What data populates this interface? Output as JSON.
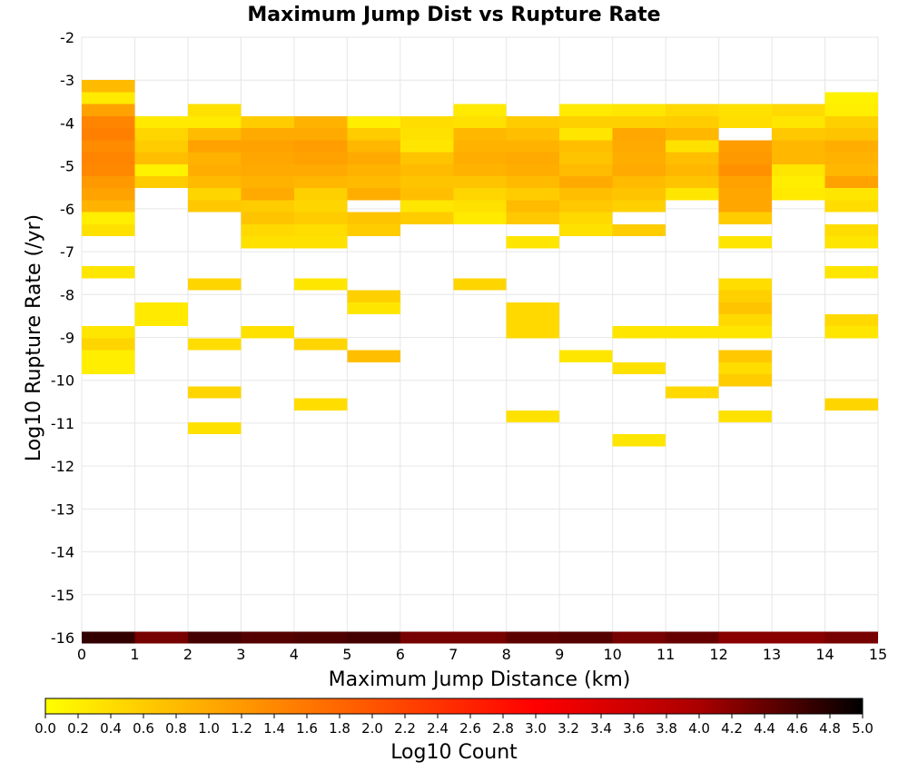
{
  "chart_data": {
    "type": "heatmap",
    "title": "Maximum Jump Dist vs Rupture Rate",
    "xlabel": "Maximum Jump Distance (km)",
    "ylabel": "Log10 Rupture Rate (/yr)",
    "xlim": [
      0,
      15
    ],
    "ylim": [
      -16,
      -2
    ],
    "x_ticks": [
      0,
      1,
      2,
      3,
      4,
      5,
      6,
      7,
      8,
      9,
      10,
      11,
      12,
      13,
      14,
      15
    ],
    "y_ticks": [
      -16,
      -15,
      -14,
      -13,
      -12,
      -11,
      -10,
      -9,
      -8,
      -7,
      -6,
      -5,
      -4,
      -3,
      -2
    ],
    "x_bin_width": 1,
    "y_bin_height": 0.28,
    "grid": true,
    "colorbar": {
      "label": "Log10 Count",
      "min": 0,
      "max": 5,
      "ticks": [
        "0.0",
        "0.2",
        "0.4",
        "0.6",
        "0.8",
        "1.0",
        "1.2",
        "1.4",
        "1.6",
        "1.8",
        "2.0",
        "2.2",
        "2.4",
        "2.6",
        "2.8",
        "3.0",
        "3.2",
        "3.4",
        "3.6",
        "3.8",
        "4.0",
        "4.2",
        "4.4",
        "4.6",
        "4.8",
        "5.0"
      ],
      "colors": [
        "#ffff00",
        "#ffaa00",
        "#ff5500",
        "#ff0000",
        "#aa0000",
        "#000000"
      ]
    },
    "cells": [
      [
        0,
        -3.14,
        0.8
      ],
      [
        0,
        -3.42,
        0.25
      ],
      [
        0,
        -3.7,
        1.1
      ],
      [
        0,
        -3.98,
        1.45
      ],
      [
        0,
        -4.26,
        1.5
      ],
      [
        0,
        -4.54,
        1.35
      ],
      [
        0,
        -4.82,
        1.45
      ],
      [
        0,
        -5.1,
        1.4
      ],
      [
        0,
        -5.38,
        1.2
      ],
      [
        0,
        -5.66,
        1.1
      ],
      [
        0,
        -5.94,
        0.9
      ],
      [
        0,
        -6.22,
        0.2
      ],
      [
        0,
        -6.5,
        0.35
      ],
      [
        0,
        -7.48,
        0.3
      ],
      [
        0,
        -8.88,
        0.3
      ],
      [
        0,
        -9.16,
        0.5
      ],
      [
        0,
        -9.44,
        0.2
      ],
      [
        0,
        -9.72,
        0.2
      ],
      [
        0,
        -16.0,
        4.7
      ],
      [
        1,
        -3.98,
        0.25
      ],
      [
        1,
        -4.26,
        0.5
      ],
      [
        1,
        -4.54,
        0.6
      ],
      [
        1,
        -4.82,
        0.75
      ],
      [
        1,
        -5.1,
        0.15
      ],
      [
        1,
        -5.38,
        0.6
      ],
      [
        1,
        -8.32,
        0.25
      ],
      [
        1,
        -8.6,
        0.25
      ],
      [
        1,
        -16.0,
        4.3
      ],
      [
        2,
        -3.7,
        0.35
      ],
      [
        2,
        -3.98,
        0.25
      ],
      [
        2,
        -4.26,
        0.8
      ],
      [
        2,
        -4.54,
        1.1
      ],
      [
        2,
        -4.82,
        0.9
      ],
      [
        2,
        -5.1,
        0.95
      ],
      [
        2,
        -5.38,
        0.8
      ],
      [
        2,
        -5.66,
        0.5
      ],
      [
        2,
        -5.94,
        0.65
      ],
      [
        2,
        -7.76,
        0.5
      ],
      [
        2,
        -9.16,
        0.4
      ],
      [
        2,
        -10.28,
        0.5
      ],
      [
        2,
        -11.12,
        0.35
      ],
      [
        2,
        -16.0,
        4.6
      ],
      [
        3,
        -3.98,
        0.6
      ],
      [
        3,
        -4.26,
        1.0
      ],
      [
        3,
        -4.54,
        1.1
      ],
      [
        3,
        -4.82,
        1.05
      ],
      [
        3,
        -5.1,
        1.0
      ],
      [
        3,
        -5.38,
        0.9
      ],
      [
        3,
        -5.66,
        1.0
      ],
      [
        3,
        -5.94,
        0.6
      ],
      [
        3,
        -6.22,
        0.7
      ],
      [
        3,
        -6.5,
        0.45
      ],
      [
        3,
        -6.78,
        0.35
      ],
      [
        3,
        -8.88,
        0.35
      ],
      [
        3,
        -16.0,
        4.5
      ],
      [
        4,
        -3.98,
        0.9
      ],
      [
        4,
        -4.26,
        1.0
      ],
      [
        4,
        -4.54,
        1.15
      ],
      [
        4,
        -4.82,
        1.1
      ],
      [
        4,
        -5.1,
        1.0
      ],
      [
        4,
        -5.38,
        0.85
      ],
      [
        4,
        -5.66,
        0.55
      ],
      [
        4,
        -5.94,
        0.5
      ],
      [
        4,
        -6.22,
        0.6
      ],
      [
        4,
        -6.5,
        0.4
      ],
      [
        4,
        -6.78,
        0.35
      ],
      [
        4,
        -7.76,
        0.3
      ],
      [
        4,
        -9.16,
        0.5
      ],
      [
        4,
        -10.56,
        0.4
      ],
      [
        4,
        -16.0,
        4.55
      ],
      [
        5,
        -3.98,
        0.2
      ],
      [
        5,
        -4.26,
        0.6
      ],
      [
        5,
        -4.54,
        0.85
      ],
      [
        5,
        -4.82,
        1.0
      ],
      [
        5,
        -5.1,
        0.9
      ],
      [
        5,
        -5.38,
        0.8
      ],
      [
        5,
        -5.66,
        0.95
      ],
      [
        5,
        -6.22,
        0.7
      ],
      [
        5,
        -6.5,
        0.6
      ],
      [
        5,
        -8.04,
        0.55
      ],
      [
        5,
        -8.32,
        0.3
      ],
      [
        5,
        -9.44,
        0.75
      ],
      [
        5,
        -16.0,
        4.6
      ],
      [
        6,
        -3.98,
        0.4
      ],
      [
        6,
        -4.26,
        0.35
      ],
      [
        6,
        -4.54,
        0.3
      ],
      [
        6,
        -4.82,
        0.7
      ],
      [
        6,
        -5.1,
        0.8
      ],
      [
        6,
        -5.38,
        0.7
      ],
      [
        6,
        -5.66,
        0.75
      ],
      [
        6,
        -5.94,
        0.3
      ],
      [
        6,
        -6.22,
        0.6
      ],
      [
        6,
        -16.0,
        4.3
      ],
      [
        7,
        -3.7,
        0.25
      ],
      [
        7,
        -3.98,
        0.35
      ],
      [
        7,
        -4.26,
        0.85
      ],
      [
        7,
        -4.54,
        0.9
      ],
      [
        7,
        -4.82,
        0.95
      ],
      [
        7,
        -5.1,
        0.9
      ],
      [
        7,
        -5.38,
        0.7
      ],
      [
        7,
        -5.66,
        0.5
      ],
      [
        7,
        -5.94,
        0.35
      ],
      [
        7,
        -6.22,
        0.25
      ],
      [
        7,
        -7.76,
        0.5
      ],
      [
        7,
        -16.0,
        4.3
      ],
      [
        8,
        -3.98,
        0.6
      ],
      [
        8,
        -4.26,
        0.75
      ],
      [
        8,
        -4.54,
        0.9
      ],
      [
        8,
        -4.82,
        1.0
      ],
      [
        8,
        -5.1,
        0.95
      ],
      [
        8,
        -5.38,
        0.8
      ],
      [
        8,
        -5.66,
        0.6
      ],
      [
        8,
        -5.94,
        0.8
      ],
      [
        8,
        -6.22,
        0.65
      ],
      [
        8,
        -6.78,
        0.3
      ],
      [
        8,
        -8.32,
        0.45
      ],
      [
        8,
        -8.6,
        0.45
      ],
      [
        8,
        -8.88,
        0.45
      ],
      [
        8,
        -10.84,
        0.35
      ],
      [
        8,
        -16.0,
        4.45
      ],
      [
        9,
        -3.7,
        0.25
      ],
      [
        9,
        -3.98,
        0.55
      ],
      [
        9,
        -4.26,
        0.3
      ],
      [
        9,
        -4.54,
        0.75
      ],
      [
        9,
        -4.82,
        0.7
      ],
      [
        9,
        -5.1,
        0.8
      ],
      [
        9,
        -5.38,
        1.0
      ],
      [
        9,
        -5.66,
        0.75
      ],
      [
        9,
        -5.94,
        0.65
      ],
      [
        9,
        -6.22,
        0.45
      ],
      [
        9,
        -6.5,
        0.35
      ],
      [
        9,
        -9.44,
        0.3
      ],
      [
        9,
        -16.0,
        4.5
      ],
      [
        10,
        -3.7,
        0.3
      ],
      [
        10,
        -3.98,
        0.55
      ],
      [
        10,
        -4.26,
        1.05
      ],
      [
        10,
        -4.54,
        1.0
      ],
      [
        10,
        -4.82,
        0.95
      ],
      [
        10,
        -5.1,
        1.0
      ],
      [
        10,
        -5.38,
        0.8
      ],
      [
        10,
        -5.66,
        0.7
      ],
      [
        10,
        -5.94,
        0.55
      ],
      [
        10,
        -6.5,
        0.6
      ],
      [
        10,
        -8.88,
        0.3
      ],
      [
        10,
        -9.72,
        0.35
      ],
      [
        10,
        -11.4,
        0.3
      ],
      [
        10,
        -16.0,
        4.3
      ],
      [
        11,
        -3.7,
        0.45
      ],
      [
        11,
        -3.98,
        0.6
      ],
      [
        11,
        -4.26,
        0.85
      ],
      [
        11,
        -4.54,
        0.35
      ],
      [
        11,
        -4.82,
        0.75
      ],
      [
        11,
        -5.1,
        0.85
      ],
      [
        11,
        -5.38,
        0.7
      ],
      [
        11,
        -5.66,
        0.3
      ],
      [
        11,
        -8.88,
        0.3
      ],
      [
        11,
        -10.28,
        0.45
      ],
      [
        11,
        -16.0,
        4.4
      ],
      [
        12,
        -3.7,
        0.35
      ],
      [
        12,
        -3.98,
        0.4
      ],
      [
        12,
        -4.54,
        1.15
      ],
      [
        12,
        -4.82,
        1.2
      ],
      [
        12,
        -5.1,
        1.3
      ],
      [
        12,
        -5.38,
        1.1
      ],
      [
        12,
        -5.66,
        1.05
      ],
      [
        12,
        -5.94,
        1.05
      ],
      [
        12,
        -6.22,
        0.6
      ],
      [
        12,
        -6.78,
        0.3
      ],
      [
        12,
        -7.76,
        0.4
      ],
      [
        12,
        -8.04,
        0.55
      ],
      [
        12,
        -8.32,
        0.7
      ],
      [
        12,
        -8.6,
        0.45
      ],
      [
        12,
        -8.88,
        0.3
      ],
      [
        12,
        -9.44,
        0.65
      ],
      [
        12,
        -9.72,
        0.4
      ],
      [
        12,
        -10.0,
        0.6
      ],
      [
        12,
        -10.84,
        0.35
      ],
      [
        12,
        -16.0,
        4.2
      ],
      [
        13,
        -3.7,
        0.45
      ],
      [
        13,
        -3.98,
        0.3
      ],
      [
        13,
        -4.26,
        0.65
      ],
      [
        13,
        -4.54,
        0.85
      ],
      [
        13,
        -4.82,
        0.85
      ],
      [
        13,
        -5.1,
        0.3
      ],
      [
        13,
        -5.38,
        0.2
      ],
      [
        13,
        -5.66,
        0.25
      ],
      [
        13,
        -16.0,
        4.2
      ],
      [
        14,
        -3.42,
        0.15
      ],
      [
        14,
        -3.7,
        0.2
      ],
      [
        14,
        -3.98,
        0.55
      ],
      [
        14,
        -4.26,
        0.7
      ],
      [
        14,
        -4.54,
        0.95
      ],
      [
        14,
        -4.82,
        0.9
      ],
      [
        14,
        -5.1,
        0.85
      ],
      [
        14,
        -5.38,
        1.1
      ],
      [
        14,
        -5.66,
        0.3
      ],
      [
        14,
        -5.94,
        0.4
      ],
      [
        14,
        -6.5,
        0.4
      ],
      [
        14,
        -6.78,
        0.3
      ],
      [
        14,
        -7.48,
        0.3
      ],
      [
        14,
        -8.6,
        0.45
      ],
      [
        14,
        -8.88,
        0.3
      ],
      [
        14,
        -10.56,
        0.5
      ],
      [
        14,
        -16.0,
        4.3
      ]
    ]
  }
}
